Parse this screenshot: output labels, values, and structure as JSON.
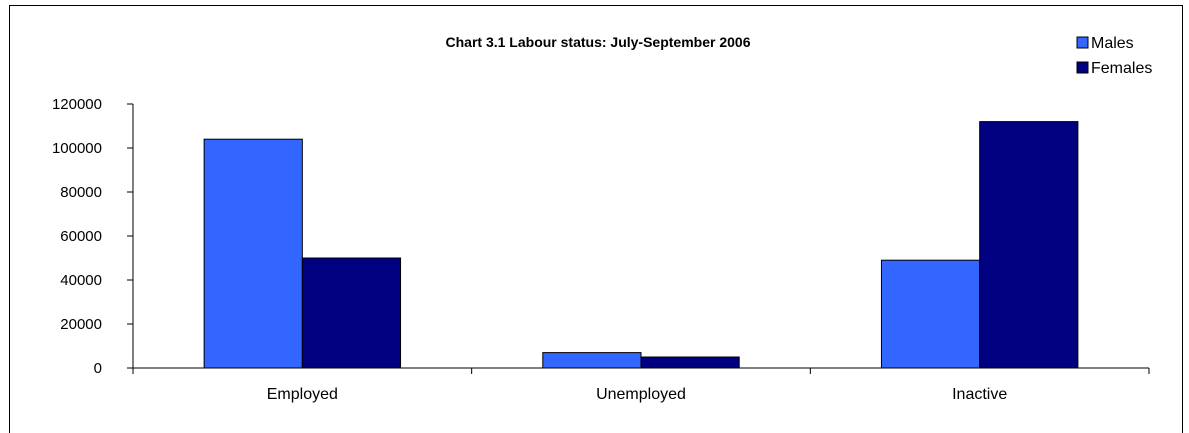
{
  "chart_data": {
    "type": "bar",
    "title": "Chart 3.1   Labour status: July-September 2006",
    "xlabel": "",
    "ylabel": "",
    "categories": [
      "Employed",
      "Unemployed",
      "Inactive"
    ],
    "series": [
      {
        "name": "Males",
        "values": [
          104000,
          7000,
          49000
        ],
        "color": "#3366ff"
      },
      {
        "name": "Females",
        "values": [
          50000,
          5000,
          112000
        ],
        "color": "#000080"
      }
    ],
    "ylim": [
      0,
      120000
    ],
    "yticks": [
      0,
      20000,
      40000,
      60000,
      80000,
      100000,
      120000
    ],
    "ytick_labels": [
      "0",
      "20000",
      "40000",
      "60000",
      "80000",
      "100000",
      "120000"
    ],
    "grid": false,
    "legend_position": "top-right"
  }
}
